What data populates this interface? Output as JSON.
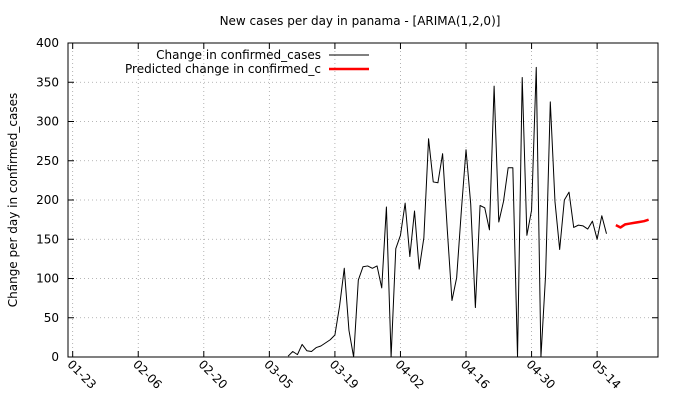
{
  "chart_data": {
    "type": "line",
    "title": "New cases per day in panama -  [ARIMA(1,2,0)]",
    "xlabel": "",
    "ylabel": "Change per day in confirmed_cases",
    "ylim": [
      0,
      400
    ],
    "y_ticks": [
      "0",
      "50",
      "100",
      "150",
      "200",
      "250",
      "300",
      "350",
      "400"
    ],
    "x_ticks": [
      "01-23",
      "02-06",
      "02-20",
      "03-05",
      "03-19",
      "04-02",
      "04-16",
      "04-30",
      "05-14"
    ],
    "x_start": "01-22",
    "x_end": "05-27",
    "grid": true,
    "legend_position": "top-left",
    "series": [
      {
        "name": "Change in confirmed_cases",
        "color": "#000000",
        "start": "03-09",
        "values": [
          1,
          7,
          3,
          16,
          8,
          7,
          12,
          14,
          18,
          22,
          28,
          65,
          113,
          34,
          0,
          98,
          115,
          116,
          113,
          116,
          88,
          191,
          0,
          138,
          155,
          196,
          128,
          186,
          112,
          152,
          278,
          223,
          222,
          259,
          162,
          72,
          101,
          186,
          264,
          195,
          63,
          193,
          190,
          162,
          345,
          172,
          198,
          241,
          241,
          0,
          356,
          155,
          187,
          369,
          0,
          105,
          325,
          198,
          137,
          200,
          210,
          165,
          168,
          167,
          163,
          173,
          150,
          180,
          157
        ]
      },
      {
        "name": "Predicted change in confirmed_c",
        "color": "#ff0000",
        "start": "05-18",
        "values": [
          168,
          165,
          169,
          170,
          171,
          172,
          173,
          175
        ]
      }
    ]
  }
}
